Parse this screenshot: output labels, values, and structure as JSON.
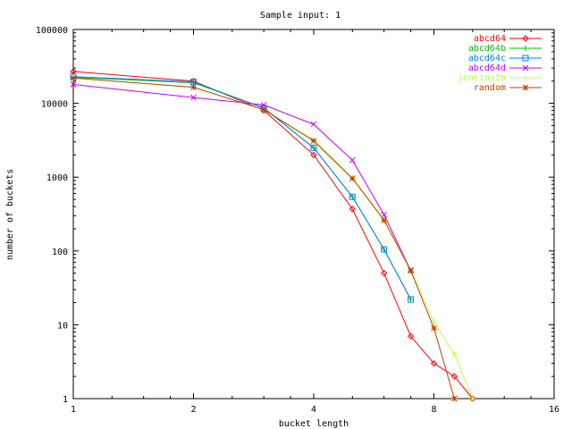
{
  "chart_data": {
    "type": "line",
    "title": "Sample input: 1",
    "xlabel": "bucket length",
    "ylabel": "number of buckets",
    "x_scale": "log2",
    "y_scale": "log10",
    "xlim": [
      1,
      16
    ],
    "ylim": [
      1,
      100000
    ],
    "x_ticks": [
      {
        "value": 1,
        "label": "1"
      },
      {
        "value": 2,
        "label": "2"
      },
      {
        "value": 4,
        "label": "4"
      },
      {
        "value": 8,
        "label": "8"
      },
      {
        "value": 16,
        "label": "16"
      }
    ],
    "y_ticks": [
      {
        "value": 1,
        "label": "1"
      },
      {
        "value": 10,
        "label": "10"
      },
      {
        "value": 100,
        "label": "100"
      },
      {
        "value": 1000,
        "label": "1000"
      },
      {
        "value": 10000,
        "label": "10000"
      },
      {
        "value": 100000,
        "label": "100000"
      }
    ],
    "grid": false,
    "legend_position": "top-right",
    "series": [
      {
        "name": "abcd64",
        "color": "#ff0000",
        "marker": "diamond",
        "x": [
          1,
          2,
          3,
          4,
          5,
          6,
          7,
          8,
          9,
          10
        ],
        "y": [
          27000,
          20000,
          8000,
          2000,
          370,
          50,
          7,
          3,
          2,
          1
        ]
      },
      {
        "name": "abcd64b",
        "color": "#00c000",
        "marker": "plus",
        "x": [
          1,
          2,
          3,
          4,
          5,
          6,
          7
        ],
        "y": [
          22500,
          19000,
          8700,
          2500,
          540,
          105,
          22
        ]
      },
      {
        "name": "abcd64c",
        "color": "#0080ff",
        "marker": "square",
        "x": [
          1,
          2,
          3,
          4,
          5,
          6,
          7
        ],
        "y": [
          23000,
          19500,
          8600,
          2500,
          540,
          105,
          22
        ]
      },
      {
        "name": "abcd64d",
        "color": "#c000ff",
        "marker": "x",
        "x": [
          1,
          2,
          3,
          4,
          5,
          6,
          7
        ],
        "y": [
          18000,
          12000,
          9500,
          5200,
          1700,
          310,
          55
        ]
      },
      {
        "name": "jenkins2b",
        "color": "#c0ff40",
        "marker": "plus",
        "x": [
          1,
          2,
          3,
          4,
          5,
          6,
          7,
          8,
          9,
          10
        ],
        "y": [
          22000,
          16500,
          8200,
          3200,
          980,
          270,
          55,
          11,
          4,
          1
        ]
      },
      {
        "name": "random",
        "color": "#c04000",
        "marker": "star",
        "x": [
          1,
          2,
          3,
          4,
          5,
          6,
          7,
          8,
          9
        ],
        "y": [
          22000,
          16500,
          8200,
          3100,
          960,
          260,
          54,
          9,
          1
        ]
      }
    ]
  }
}
